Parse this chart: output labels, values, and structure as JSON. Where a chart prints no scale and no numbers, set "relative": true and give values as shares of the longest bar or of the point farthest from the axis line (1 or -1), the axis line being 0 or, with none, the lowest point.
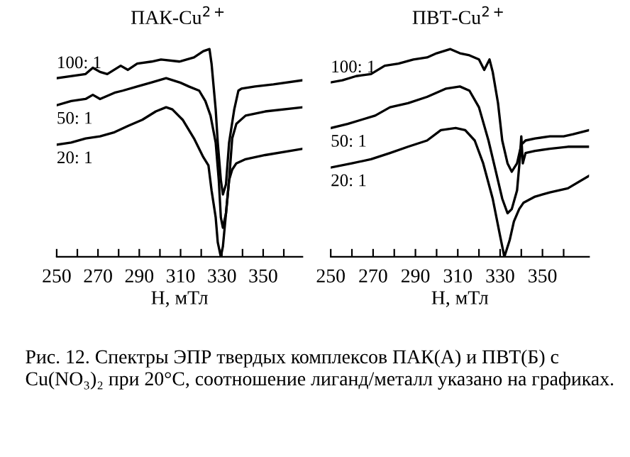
{
  "chart_data": [
    {
      "type": "line",
      "title": "ПАК-Cu$^{2+}$",
      "xlabel": "Н, мТл",
      "relative": true,
      "legend": false,
      "grid": false,
      "marker": "none",
      "line_style": "solid",
      "xlim": [
        250,
        369
      ],
      "xticks": [
        250,
        {
          "value": 260,
          "label": null
        },
        270,
        {
          "value": 280,
          "label": null
        },
        290,
        {
          "value": 300,
          "label": null
        },
        310,
        {
          "value": 320,
          "label": null
        },
        330,
        {
          "value": 340,
          "label": null
        },
        350,
        {
          "value": 360,
          "label": null
        }
      ],
      "annotations": [
        "Рис. 12. Спектры ЭПР твердых комплексов ПАК(А) и ПВТ(Б) с Cu(NO₃)₂ при 20°С, соотношение лиганд/металл указано на графиках."
      ],
      "series": [
        {
          "name": "100: 1",
          "color": "#000000",
          "x": [
            250,
            264,
            267.5,
            271,
            274.5,
            281,
            284.5,
            289,
            296,
            300.5,
            309.5,
            316.5,
            321,
            324,
            325,
            327,
            328,
            329.5,
            330.5,
            332,
            333.5,
            336,
            338,
            339.5,
            346,
            355,
            369
          ],
          "values": [
            0.86,
            0.88,
            0.91,
            0.89,
            0.88,
            0.92,
            0.9,
            0.93,
            0.94,
            0.95,
            0.94,
            0.96,
            0.99,
            1.0,
            0.93,
            0.71,
            0.55,
            0.37,
            0.3,
            0.35,
            0.55,
            0.71,
            0.8,
            0.81,
            0.82,
            0.83,
            0.85
          ]
        },
        {
          "name": "50: 1",
          "color": "#000000",
          "x": [
            250,
            257,
            264,
            267.5,
            271,
            278,
            282,
            289,
            296,
            303,
            309.5,
            314,
            319,
            322,
            324.5,
            327,
            328.5,
            329.5,
            330.5,
            332,
            333.5,
            335,
            337,
            341.5,
            351,
            369
          ],
          "values": [
            0.73,
            0.75,
            0.76,
            0.78,
            0.76,
            0.79,
            0.8,
            0.82,
            0.84,
            0.86,
            0.84,
            0.82,
            0.8,
            0.75,
            0.68,
            0.55,
            0.37,
            0.19,
            0.14,
            0.21,
            0.37,
            0.57,
            0.64,
            0.68,
            0.7,
            0.72
          ]
        },
        {
          "name": "20: 1",
          "color": "#000000",
          "x": [
            250,
            257,
            264,
            271,
            278,
            284.5,
            291.5,
            298,
            303,
            306,
            311,
            316.5,
            321,
            323.5,
            325,
            327,
            328,
            329.5,
            330.5,
            332,
            333.5,
            335,
            337,
            341.5,
            351,
            369
          ],
          "values": [
            0.54,
            0.55,
            0.57,
            0.58,
            0.6,
            0.63,
            0.66,
            0.7,
            0.72,
            0.71,
            0.66,
            0.57,
            0.48,
            0.44,
            0.32,
            0.19,
            0.07,
            0.0,
            0.05,
            0.21,
            0.37,
            0.42,
            0.45,
            0.47,
            0.49,
            0.52
          ]
        }
      ]
    },
    {
      "type": "line",
      "title": "ПВТ-Cu$^{2+}$",
      "xlabel": "Н, мТл",
      "relative": true,
      "legend": false,
      "grid": false,
      "marker": "none",
      "line_style": "solid",
      "xlim": [
        250,
        372
      ],
      "xticks": [
        250,
        {
          "value": 260,
          "label": null
        },
        270,
        {
          "value": 280,
          "label": null
        },
        290,
        {
          "value": 300,
          "label": null
        },
        310,
        {
          "value": 320,
          "label": null
        },
        330,
        {
          "value": 340,
          "label": null
        },
        350,
        {
          "value": 360,
          "label": null
        }
      ],
      "series": [
        {
          "name": "100: 1",
          "color": "#000000",
          "x": [
            250,
            255.5,
            262,
            269,
            275.5,
            282,
            289,
            295.5,
            300,
            306.5,
            311,
            315.5,
            320,
            322.5,
            325,
            326.5,
            329,
            331,
            333.5,
            335.5,
            338,
            340,
            342,
            346.5,
            353.5,
            360,
            364.5,
            372
          ],
          "values": [
            0.84,
            0.85,
            0.87,
            0.88,
            0.92,
            0.93,
            0.95,
            0.96,
            0.98,
            1.0,
            0.98,
            0.97,
            0.95,
            0.9,
            0.95,
            0.89,
            0.74,
            0.56,
            0.45,
            0.41,
            0.45,
            0.54,
            0.56,
            0.57,
            0.58,
            0.58,
            0.59,
            0.61
          ]
        },
        {
          "name": "50: 1",
          "color": "#000000",
          "x": [
            250,
            258,
            264.5,
            271,
            278,
            286.5,
            295.5,
            304.5,
            311,
            315.5,
            320,
            324.5,
            328,
            331,
            333.5,
            335.5,
            338,
            339.3,
            340,
            340.7,
            342,
            346.5,
            353.5,
            362,
            372
          ],
          "values": [
            0.62,
            0.64,
            0.66,
            0.68,
            0.72,
            0.74,
            0.77,
            0.81,
            0.82,
            0.8,
            0.72,
            0.56,
            0.41,
            0.28,
            0.21,
            0.23,
            0.32,
            0.47,
            0.58,
            0.45,
            0.5,
            0.51,
            0.52,
            0.53,
            0.53
          ]
        },
        {
          "name": "20: 1",
          "color": "#000000",
          "x": [
            250,
            260,
            269,
            278,
            286.5,
            295.5,
            302,
            309,
            313.5,
            318,
            322,
            326.5,
            330,
            332,
            334.5,
            336.5,
            339,
            341,
            346.5,
            353.5,
            362,
            372
          ],
          "values": [
            0.43,
            0.45,
            0.47,
            0.5,
            0.53,
            0.56,
            0.61,
            0.62,
            0.61,
            0.56,
            0.45,
            0.28,
            0.1,
            0.0,
            0.08,
            0.17,
            0.23,
            0.26,
            0.29,
            0.31,
            0.33,
            0.39
          ]
        }
      ]
    }
  ]
}
